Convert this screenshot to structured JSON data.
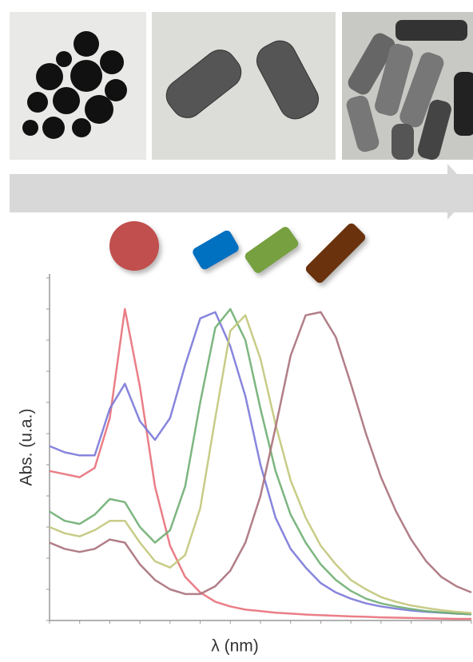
{
  "chart_data": {
    "type": "line",
    "xlabel": "λ (nm)",
    "ylabel": "Abs. (u.a.)",
    "x": [
      0,
      0.5,
      1,
      1.5,
      2,
      2.5,
      3,
      3.5,
      4,
      4.5,
      5,
      5.5,
      6,
      6.5,
      7,
      7.5,
      8,
      8.5,
      9,
      9.5,
      10,
      10.5,
      11,
      11.5,
      12,
      12.5,
      13,
      13.5,
      14
    ],
    "xlim": [
      0,
      14
    ],
    "ylim": [
      0,
      11
    ],
    "xticks": [
      0,
      1,
      2,
      3,
      4,
      5,
      6,
      7,
      8,
      9,
      10,
      11,
      12,
      13,
      14
    ],
    "yticks": [
      0,
      1,
      2,
      3,
      4,
      5,
      6,
      7,
      8,
      9,
      10,
      11
    ],
    "series": [
      {
        "color": "#e8707a",
        "values": [
          4.8,
          4.7,
          4.6,
          4.9,
          6.5,
          10.0,
          7.5,
          4.3,
          2.4,
          1.4,
          0.9,
          0.6,
          0.45,
          0.35,
          0.3,
          0.25,
          0.22,
          0.19,
          0.17,
          0.15,
          0.13,
          0.12,
          0.1,
          0.09,
          0.08,
          0.07,
          0.06,
          0.05,
          0.05
        ]
      },
      {
        "color": "#7a78d8",
        "values": [
          5.6,
          5.4,
          5.3,
          5.3,
          6.8,
          7.6,
          6.4,
          5.8,
          6.5,
          8.2,
          9.7,
          9.9,
          8.8,
          7.2,
          5.0,
          3.3,
          2.3,
          1.7,
          1.2,
          0.9,
          0.7,
          0.55,
          0.45,
          0.38,
          0.32,
          0.28,
          0.25,
          0.22,
          0.2
        ]
      },
      {
        "color": "#6fae72",
        "values": [
          3.5,
          3.2,
          3.1,
          3.4,
          3.9,
          3.8,
          3.0,
          2.5,
          2.9,
          4.3,
          7.0,
          9.4,
          10.0,
          9.0,
          6.8,
          4.8,
          3.4,
          2.5,
          1.8,
          1.3,
          0.95,
          0.7,
          0.55,
          0.45,
          0.37,
          0.3,
          0.26,
          0.22,
          0.2
        ]
      },
      {
        "color": "#c2c67a",
        "values": [
          3.0,
          2.8,
          2.7,
          2.9,
          3.2,
          3.2,
          2.5,
          1.9,
          1.7,
          2.1,
          3.6,
          6.5,
          9.3,
          9.8,
          8.4,
          6.3,
          4.5,
          3.3,
          2.4,
          1.8,
          1.3,
          1.0,
          0.75,
          0.6,
          0.48,
          0.4,
          0.33,
          0.28,
          0.24
        ]
      },
      {
        "color": "#a8707a",
        "values": [
          2.5,
          2.3,
          2.2,
          2.3,
          2.6,
          2.5,
          1.8,
          1.3,
          1.0,
          0.85,
          0.85,
          1.1,
          1.6,
          2.5,
          4.0,
          6.2,
          8.5,
          9.8,
          9.9,
          9.1,
          7.6,
          6.0,
          4.6,
          3.5,
          2.6,
          1.9,
          1.4,
          1.1,
          0.9
        ]
      }
    ]
  }
}
